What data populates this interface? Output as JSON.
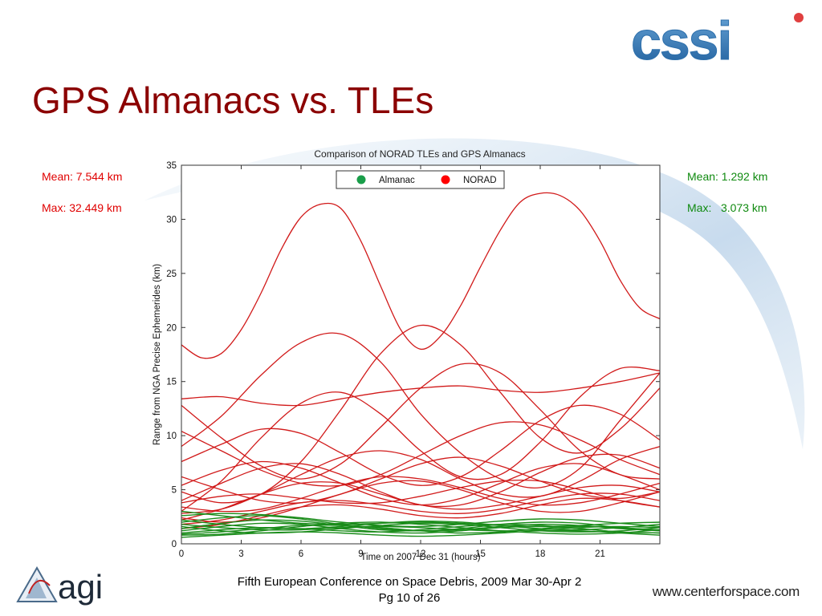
{
  "slide": {
    "title": "GPS Almanacs vs. TLEs",
    "stats_left": {
      "mean": "Mean: 7.544 km",
      "max": "Max: 32.449 km"
    },
    "stats_right": {
      "mean": "Mean: 1.292 km",
      "max": "Max:   3.073 km"
    },
    "footer_line1": "Fifth European Conference on Space Debris, 2009 Mar 30-Apr 2",
    "footer_line2": "Pg 10 of 26",
    "url": "www.centerforspace.com",
    "logo_left_text": "agi",
    "logo_right_text": "cssi"
  },
  "chart_data": {
    "type": "line",
    "title": "Comparison of NORAD TLEs and GPS Almanacs",
    "xlabel": "Time on 2007 Dec 31 (hours)",
    "ylabel": "Range from NGA Precise Ephemerides (km)",
    "xlim": [
      0,
      24
    ],
    "ylim": [
      0,
      35
    ],
    "xticks": [
      0,
      3,
      6,
      9,
      12,
      15,
      18,
      21
    ],
    "yticks": [
      0,
      5,
      10,
      15,
      20,
      25,
      30,
      35
    ],
    "legend": {
      "position": "top-center",
      "entries": [
        {
          "label": "Almanac",
          "color": "#1a9e4a"
        },
        {
          "label": "NORAD",
          "color": "#ff0000"
        }
      ]
    },
    "colors": {
      "almanac": "#1a8c1a",
      "norad": "#d11a1a"
    },
    "series": [
      {
        "name": "NORAD",
        "color": "#d11a1a",
        "x": [
          0,
          1,
          2,
          3,
          4,
          5,
          6,
          7,
          8,
          9,
          10,
          11,
          12,
          13,
          14,
          15,
          16,
          17,
          18,
          19,
          20,
          21,
          22,
          23,
          24
        ],
        "y": [
          18.4,
          17.2,
          17.6,
          19.8,
          23.2,
          27.2,
          30.2,
          31.4,
          31.0,
          28.0,
          23.8,
          19.8,
          18.0,
          19.2,
          22.0,
          25.6,
          29.0,
          31.6,
          32.4,
          32.2,
          30.8,
          28.0,
          24.4,
          21.8,
          20.8
        ]
      },
      {
        "name": "NORAD",
        "color": "#d11a1a",
        "x": [
          0,
          2,
          4,
          6,
          8,
          10,
          12,
          14,
          16,
          18,
          20,
          22,
          24
        ],
        "y": [
          9.0,
          11.8,
          15.6,
          18.6,
          19.4,
          16.8,
          12.0,
          8.4,
          6.0,
          5.2,
          7.0,
          11.4,
          15.8
        ]
      },
      {
        "name": "NORAD",
        "color": "#d11a1a",
        "x": [
          0,
          2,
          4,
          6,
          8,
          10,
          12,
          14,
          16,
          18,
          20,
          22,
          24
        ],
        "y": [
          13.4,
          13.6,
          13.0,
          12.8,
          13.4,
          14.0,
          14.4,
          14.6,
          14.2,
          14.0,
          14.4,
          15.0,
          15.8
        ]
      },
      {
        "name": "NORAD",
        "color": "#d11a1a",
        "x": [
          0,
          2,
          4,
          6,
          8,
          10,
          12,
          14,
          16,
          18,
          20,
          22,
          24
        ],
        "y": [
          4.8,
          3.8,
          4.6,
          7.6,
          12.4,
          17.6,
          20.2,
          18.4,
          14.0,
          9.8,
          8.4,
          10.6,
          14.4
        ]
      },
      {
        "name": "NORAD",
        "color": "#d11a1a",
        "x": [
          0,
          2,
          4,
          6,
          8,
          10,
          12,
          14,
          16,
          18,
          20,
          22,
          24
        ],
        "y": [
          12.8,
          9.8,
          7.2,
          6.0,
          7.4,
          10.8,
          14.4,
          16.6,
          15.8,
          12.4,
          8.6,
          6.4,
          6.0
        ]
      },
      {
        "name": "NORAD",
        "color": "#d11a1a",
        "x": [
          0,
          2,
          4,
          6,
          8,
          10,
          12,
          14,
          16,
          18,
          20,
          22,
          24
        ],
        "y": [
          3.0,
          5.8,
          9.8,
          13.0,
          14.0,
          12.0,
          8.6,
          6.2,
          6.4,
          9.4,
          13.6,
          16.2,
          16.0
        ]
      },
      {
        "name": "NORAD",
        "color": "#d11a1a",
        "x": [
          0,
          2,
          4,
          6,
          8,
          10,
          12,
          14,
          16,
          18,
          20,
          22,
          24
        ],
        "y": [
          7.6,
          9.2,
          10.6,
          10.2,
          8.4,
          6.4,
          5.4,
          6.2,
          8.6,
          11.4,
          12.8,
          12.0,
          9.6
        ]
      },
      {
        "name": "NORAD",
        "color": "#d11a1a",
        "x": [
          0,
          2,
          4,
          6,
          8,
          10,
          12,
          14,
          16,
          18,
          20,
          22,
          24
        ],
        "y": [
          10.4,
          8.6,
          6.8,
          5.6,
          5.4,
          6.4,
          8.2,
          10.0,
          11.2,
          11.0,
          9.6,
          7.8,
          6.4
        ]
      },
      {
        "name": "NORAD",
        "color": "#d11a1a",
        "x": [
          0,
          2,
          4,
          6,
          8,
          10,
          12,
          14,
          16,
          18,
          20,
          22,
          24
        ],
        "y": [
          2.8,
          3.2,
          4.6,
          6.4,
          8.0,
          8.6,
          7.8,
          6.0,
          4.6,
          4.4,
          5.8,
          7.8,
          9.0
        ]
      },
      {
        "name": "NORAD",
        "color": "#d11a1a",
        "x": [
          0,
          2,
          4,
          6,
          8,
          10,
          12,
          14,
          16,
          18,
          20,
          22,
          24
        ],
        "y": [
          6.2,
          5.0,
          4.0,
          3.8,
          4.6,
          6.0,
          7.4,
          8.0,
          7.2,
          5.8,
          4.6,
          4.2,
          4.8
        ]
      },
      {
        "name": "NORAD",
        "color": "#d11a1a",
        "x": [
          0,
          2,
          4,
          6,
          8,
          10,
          12,
          14,
          16,
          18,
          20,
          22,
          24
        ],
        "y": [
          4.0,
          5.6,
          7.0,
          7.4,
          6.4,
          4.8,
          3.6,
          3.6,
          4.8,
          6.6,
          8.0,
          8.2,
          7.0
        ]
      },
      {
        "name": "NORAD",
        "color": "#d11a1a",
        "x": [
          0,
          2,
          4,
          6,
          8,
          10,
          12,
          14,
          16,
          18,
          20,
          22,
          24
        ],
        "y": [
          3.4,
          3.0,
          3.2,
          4.2,
          5.4,
          6.2,
          6.0,
          5.2,
          4.2,
          3.6,
          3.8,
          4.6,
          5.6
        ]
      },
      {
        "name": "NORAD",
        "color": "#d11a1a",
        "x": [
          0,
          2,
          4,
          6,
          8,
          10,
          12,
          14,
          16,
          18,
          20,
          22,
          24
        ],
        "y": [
          5.4,
          6.8,
          7.6,
          7.0,
          5.6,
          4.2,
          3.6,
          4.2,
          5.6,
          7.0,
          7.4,
          6.4,
          5.0
        ]
      },
      {
        "name": "NORAD",
        "color": "#d11a1a",
        "x": [
          0,
          2,
          4,
          6,
          8,
          10,
          12,
          14,
          16,
          18,
          20,
          22,
          24
        ],
        "y": [
          2.4,
          2.0,
          2.4,
          3.4,
          4.6,
          5.6,
          5.8,
          5.0,
          3.8,
          3.0,
          3.0,
          3.8,
          4.8
        ]
      },
      {
        "name": "NORAD",
        "color": "#d11a1a",
        "x": [
          0,
          2,
          4,
          6,
          8,
          10,
          12,
          14,
          16,
          18,
          20,
          22,
          24
        ],
        "y": [
          3.8,
          4.4,
          4.6,
          4.2,
          3.8,
          3.8,
          4.4,
          5.2,
          5.8,
          5.8,
          5.0,
          4.0,
          3.4
        ]
      },
      {
        "name": "NORAD",
        "color": "#d11a1a",
        "x": [
          0,
          2,
          4,
          6,
          8,
          10,
          12,
          14,
          16,
          18,
          20,
          22,
          24
        ],
        "y": [
          1.8,
          2.2,
          3.0,
          3.8,
          4.0,
          3.6,
          3.0,
          2.8,
          3.2,
          4.0,
          4.6,
          4.6,
          4.0
        ]
      },
      {
        "name": "NORAD",
        "color": "#d11a1a",
        "x": [
          0,
          2,
          4,
          6,
          8,
          10,
          12,
          14,
          16,
          18,
          20,
          22,
          24
        ],
        "y": [
          2.2,
          3.2,
          4.6,
          5.6,
          5.6,
          4.6,
          3.6,
          3.2,
          3.6,
          4.4,
          5.2,
          5.4,
          4.8
        ]
      },
      {
        "name": "NORAD",
        "color": "#d11a1a",
        "x": [
          0,
          2,
          4,
          6,
          8,
          10,
          12,
          14,
          16,
          18,
          20,
          22,
          24
        ],
        "y": [
          1.4,
          1.8,
          2.6,
          3.4,
          3.6,
          3.2,
          2.6,
          2.4,
          2.8,
          3.6,
          4.2,
          4.0,
          3.4
        ]
      },
      {
        "name": "Almanac",
        "color": "#1a8c1a",
        "x": [
          0,
          2,
          4,
          6,
          8,
          10,
          12,
          14,
          16,
          18,
          20,
          22,
          24
        ],
        "y": [
          1.2,
          1.6,
          1.9,
          1.8,
          1.4,
          1.1,
          1.0,
          1.2,
          1.5,
          1.6,
          1.4,
          1.1,
          1.0
        ]
      },
      {
        "name": "Almanac",
        "color": "#1a8c1a",
        "x": [
          0,
          2,
          4,
          6,
          8,
          10,
          12,
          14,
          16,
          18,
          20,
          22,
          24
        ],
        "y": [
          2.0,
          2.4,
          2.6,
          2.3,
          1.8,
          1.4,
          1.2,
          1.3,
          1.6,
          1.8,
          1.7,
          1.4,
          1.2
        ]
      },
      {
        "name": "Almanac",
        "color": "#1a8c1a",
        "x": [
          0,
          2,
          4,
          6,
          8,
          10,
          12,
          14,
          16,
          18,
          20,
          22,
          24
        ],
        "y": [
          0.8,
          0.9,
          1.2,
          1.6,
          1.9,
          2.0,
          1.8,
          1.5,
          1.2,
          1.0,
          0.9,
          1.0,
          1.3
        ]
      },
      {
        "name": "Almanac",
        "color": "#1a8c1a",
        "x": [
          0,
          2,
          4,
          6,
          8,
          10,
          12,
          14,
          16,
          18,
          20,
          22,
          24
        ],
        "y": [
          1.6,
          1.2,
          1.0,
          1.1,
          1.4,
          1.7,
          1.9,
          1.8,
          1.5,
          1.2,
          1.1,
          1.2,
          1.5
        ]
      },
      {
        "name": "Almanac",
        "color": "#1a8c1a",
        "x": [
          0,
          2,
          4,
          6,
          8,
          10,
          12,
          14,
          16,
          18,
          20,
          22,
          24
        ],
        "y": [
          2.6,
          2.8,
          2.7,
          2.4,
          2.0,
          1.7,
          1.6,
          1.8,
          2.1,
          2.3,
          2.2,
          1.9,
          1.6
        ]
      },
      {
        "name": "Almanac",
        "color": "#1a8c1a",
        "x": [
          0,
          2,
          4,
          6,
          8,
          10,
          12,
          14,
          16,
          18,
          20,
          22,
          24
        ],
        "y": [
          0.6,
          0.8,
          1.0,
          1.1,
          1.0,
          0.8,
          0.7,
          0.8,
          1.0,
          1.2,
          1.2,
          1.0,
          0.8
        ]
      },
      {
        "name": "Almanac",
        "color": "#1a8c1a",
        "x": [
          0,
          2,
          4,
          6,
          8,
          10,
          12,
          14,
          16,
          18,
          20,
          22,
          24
        ],
        "y": [
          1.4,
          1.9,
          2.2,
          2.1,
          1.7,
          1.3,
          1.2,
          1.4,
          1.8,
          2.0,
          1.9,
          1.5,
          1.3
        ]
      },
      {
        "name": "Almanac",
        "color": "#1a8c1a",
        "x": [
          0,
          2,
          4,
          6,
          8,
          10,
          12,
          14,
          16,
          18,
          20,
          22,
          24
        ],
        "y": [
          2.2,
          1.8,
          1.5,
          1.4,
          1.6,
          1.9,
          2.1,
          2.0,
          1.7,
          1.4,
          1.3,
          1.5,
          1.8
        ]
      },
      {
        "name": "Almanac",
        "color": "#1a8c1a",
        "x": [
          0,
          2,
          4,
          6,
          8,
          10,
          12,
          14,
          16,
          18,
          20,
          22,
          24
        ],
        "y": [
          1.0,
          1.3,
          1.5,
          1.4,
          1.2,
          1.1,
          1.3,
          1.6,
          1.8,
          1.7,
          1.4,
          1.1,
          1.0
        ]
      },
      {
        "name": "Almanac",
        "color": "#1a8c1a",
        "x": [
          0,
          2,
          4,
          6,
          8,
          10,
          12,
          14,
          16,
          18,
          20,
          22,
          24
        ],
        "y": [
          3.0,
          2.6,
          2.2,
          1.9,
          1.8,
          1.9,
          2.0,
          1.9,
          1.7,
          1.6,
          1.7,
          1.9,
          2.0
        ]
      },
      {
        "name": "Almanac",
        "color": "#1a8c1a",
        "x": [
          0,
          2,
          4,
          6,
          8,
          10,
          12,
          14,
          16,
          18,
          20,
          22,
          24
        ],
        "y": [
          1.8,
          1.5,
          1.3,
          1.3,
          1.5,
          1.6,
          1.5,
          1.3,
          1.2,
          1.3,
          1.5,
          1.6,
          1.5
        ]
      },
      {
        "name": "Almanac",
        "color": "#1a8c1a",
        "x": [
          0,
          2,
          4,
          6,
          8,
          10,
          12,
          14,
          16,
          18,
          20,
          22,
          24
        ],
        "y": [
          0.9,
          1.1,
          1.4,
          1.7,
          1.7,
          1.5,
          1.2,
          1.0,
          1.1,
          1.4,
          1.6,
          1.5,
          1.2
        ]
      }
    ]
  }
}
